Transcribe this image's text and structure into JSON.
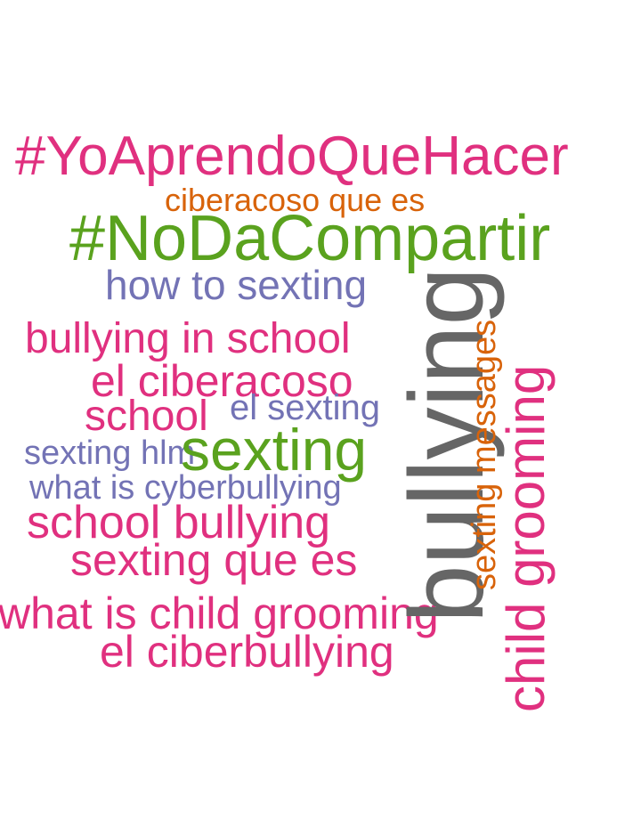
{
  "colors": {
    "pink": "#e0307f",
    "green": "#5aa21e",
    "purple": "#7373b5",
    "orange": "#d8630a",
    "gray": "#666666"
  },
  "words": {
    "w_yoaprendo": "#YoAprendoQueHacer",
    "w_ciberacoso_que_es": "ciberacoso que es",
    "w_nodacompartir": "#NoDaCompartir",
    "w_how_to_sexting": "how to sexting",
    "w_bullying_in_school": "bullying in school",
    "w_el_ciberacoso": "el ciberacoso",
    "w_el_sexting": "el sexting",
    "w_school": "school",
    "w_sexting_hlm": "sexting hlm",
    "w_sexting": "sexting",
    "w_what_is_cyberbullying": "what is cyberbullying",
    "w_school_bullying": "school bullying",
    "w_sexting_que_es": "sexting que es",
    "w_what_is_child_grooming": "what is child grooming",
    "w_el_ciberbullying": "el ciberbullying",
    "w_bullying": "bullying",
    "w_sexting_messages": "sexting messages",
    "w_child_grooming": "child grooming"
  }
}
